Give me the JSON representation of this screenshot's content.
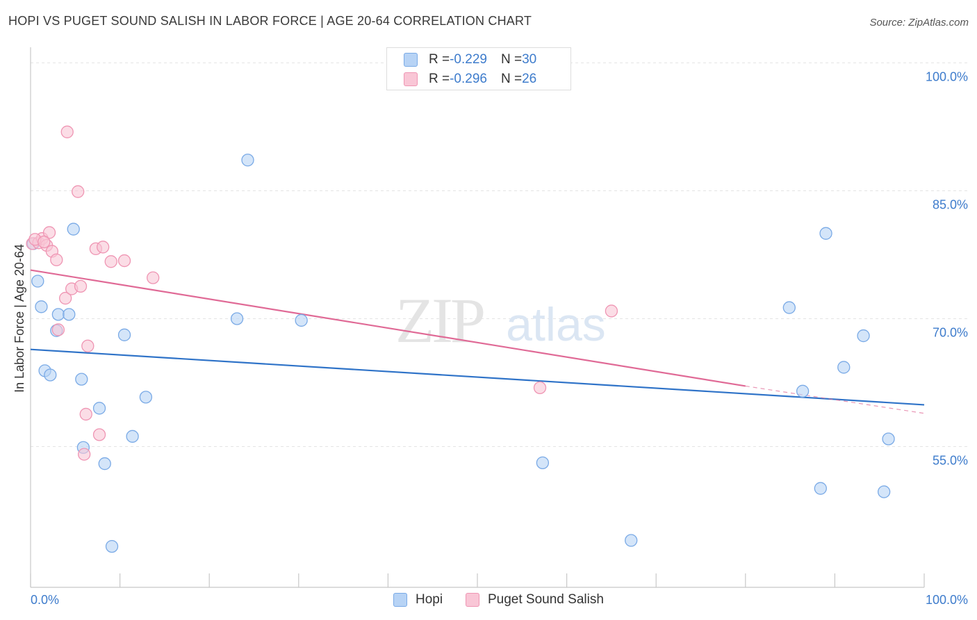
{
  "title": "HOPI VS PUGET SOUND SALISH IN LABOR FORCE | AGE 20-64 CORRELATION CHART",
  "source": "Source: ZipAtlas.com",
  "watermark": {
    "zip": "ZIP",
    "atlas": "atlas"
  },
  "colors": {
    "hopi_fill": "#b7d3f5",
    "hopi_stroke": "#7aaae6",
    "hopi_line": "#2f73c8",
    "salish_fill": "#f9c6d6",
    "salish_stroke": "#ef95b3",
    "salish_line": "#e06a96",
    "tick_label": "#3e7ccc",
    "grid": "#e3e3e3"
  },
  "legend": {
    "rows": [
      {
        "r_label": "R = ",
        "r_value": "-0.229",
        "n_label": "N = ",
        "n_value": "30"
      },
      {
        "r_label": "R = ",
        "r_value": "-0.296",
        "n_label": "N = ",
        "n_value": "26"
      }
    ]
  },
  "chart_data": {
    "type": "scatter",
    "title": "HOPI VS PUGET SOUND SALISH IN LABOR FORCE | AGE 20-64 CORRELATION CHART",
    "xlabel": "",
    "ylabel": "In Labor Force | Age 20-64",
    "xlim": [
      0,
      100
    ],
    "ylim": [
      38.5,
      101.5
    ],
    "x_tick_labels": [
      "0.0%",
      "100.0%"
    ],
    "y_ticks": [
      55,
      70,
      85,
      100
    ],
    "y_tick_labels": [
      "55.0%",
      "70.0%",
      "85.0%",
      "100.0%"
    ],
    "grid": true,
    "legend_position": "top-center",
    "series": [
      {
        "name": "Hopi",
        "points": [
          [
            0.3,
            78.8
          ],
          [
            0.8,
            74.4
          ],
          [
            1.2,
            71.4
          ],
          [
            1.6,
            63.9
          ],
          [
            2.2,
            63.4
          ],
          [
            2.9,
            68.6
          ],
          [
            3.1,
            70.5
          ],
          [
            4.3,
            70.5
          ],
          [
            4.8,
            80.5
          ],
          [
            5.7,
            62.9
          ],
          [
            5.9,
            54.9
          ],
          [
            7.7,
            59.5
          ],
          [
            8.3,
            53.0
          ],
          [
            9.1,
            43.3
          ],
          [
            10.5,
            68.1
          ],
          [
            11.4,
            56.2
          ],
          [
            12.9,
            60.8
          ],
          [
            23.1,
            70.0
          ],
          [
            24.3,
            88.6
          ],
          [
            30.3,
            69.8
          ],
          [
            57.3,
            53.1
          ],
          [
            67.2,
            44.0
          ],
          [
            84.9,
            71.3
          ],
          [
            86.4,
            61.5
          ],
          [
            88.4,
            50.1
          ],
          [
            89.0,
            80.0
          ],
          [
            91.0,
            64.3
          ],
          [
            93.2,
            68.0
          ],
          [
            95.5,
            49.7
          ],
          [
            96.0,
            55.9
          ]
        ],
        "trend": [
          [
            0,
            66.4
          ],
          [
            100,
            59.9
          ]
        ]
      },
      {
        "name": "Puget Sound Salish",
        "points": [
          [
            0.2,
            78.8
          ],
          [
            0.9,
            78.9
          ],
          [
            1.3,
            79.4
          ],
          [
            1.8,
            78.6
          ],
          [
            2.1,
            80.1
          ],
          [
            2.4,
            77.9
          ],
          [
            2.9,
            76.9
          ],
          [
            3.1,
            68.7
          ],
          [
            3.9,
            72.4
          ],
          [
            4.1,
            91.9
          ],
          [
            4.6,
            73.5
          ],
          [
            5.3,
            84.9
          ],
          [
            5.6,
            73.8
          ],
          [
            6.0,
            54.1
          ],
          [
            6.2,
            58.8
          ],
          [
            6.4,
            66.8
          ],
          [
            7.3,
            78.2
          ],
          [
            7.7,
            56.4
          ],
          [
            8.1,
            78.4
          ],
          [
            9.0,
            76.7
          ],
          [
            10.5,
            76.8
          ],
          [
            13.7,
            74.8
          ],
          [
            57.0,
            61.9
          ],
          [
            65.0,
            70.9
          ],
          [
            0.5,
            79.3
          ],
          [
            1.5,
            79.0
          ]
        ],
        "trend": [
          [
            0,
            75.7
          ],
          [
            80,
            62.1
          ]
        ],
        "trend_dashed": [
          [
            80,
            62.1
          ],
          [
            100,
            58.9
          ]
        ]
      }
    ]
  }
}
